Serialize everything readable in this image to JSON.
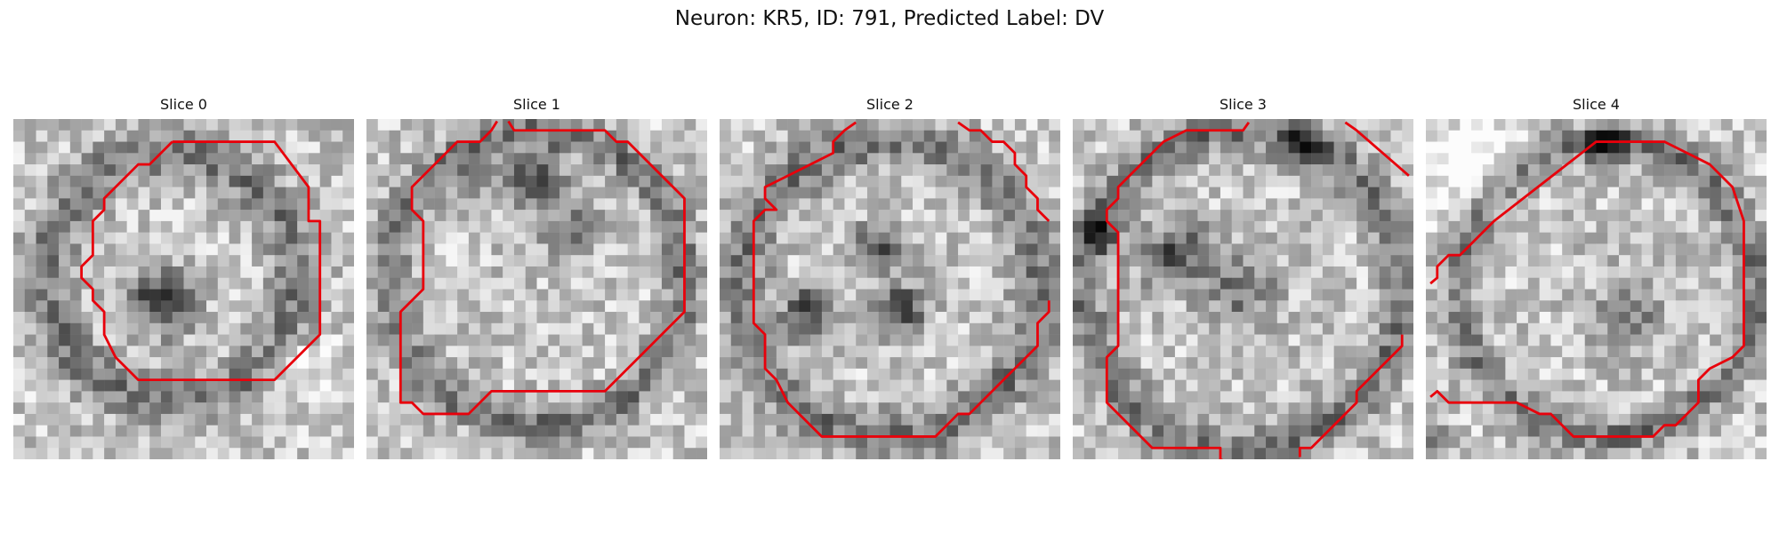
{
  "figure": {
    "title": "Neuron: KR5, ID: 791, Predicted Label: DV"
  },
  "colors": {
    "contour": "#e8000b",
    "background": "#ffffff"
  },
  "panels": [
    {
      "title": "Slice 0"
    },
    {
      "title": "Slice 1"
    },
    {
      "title": "Slice 2"
    },
    {
      "title": "Slice 3"
    },
    {
      "title": "Slice 4"
    }
  ]
}
